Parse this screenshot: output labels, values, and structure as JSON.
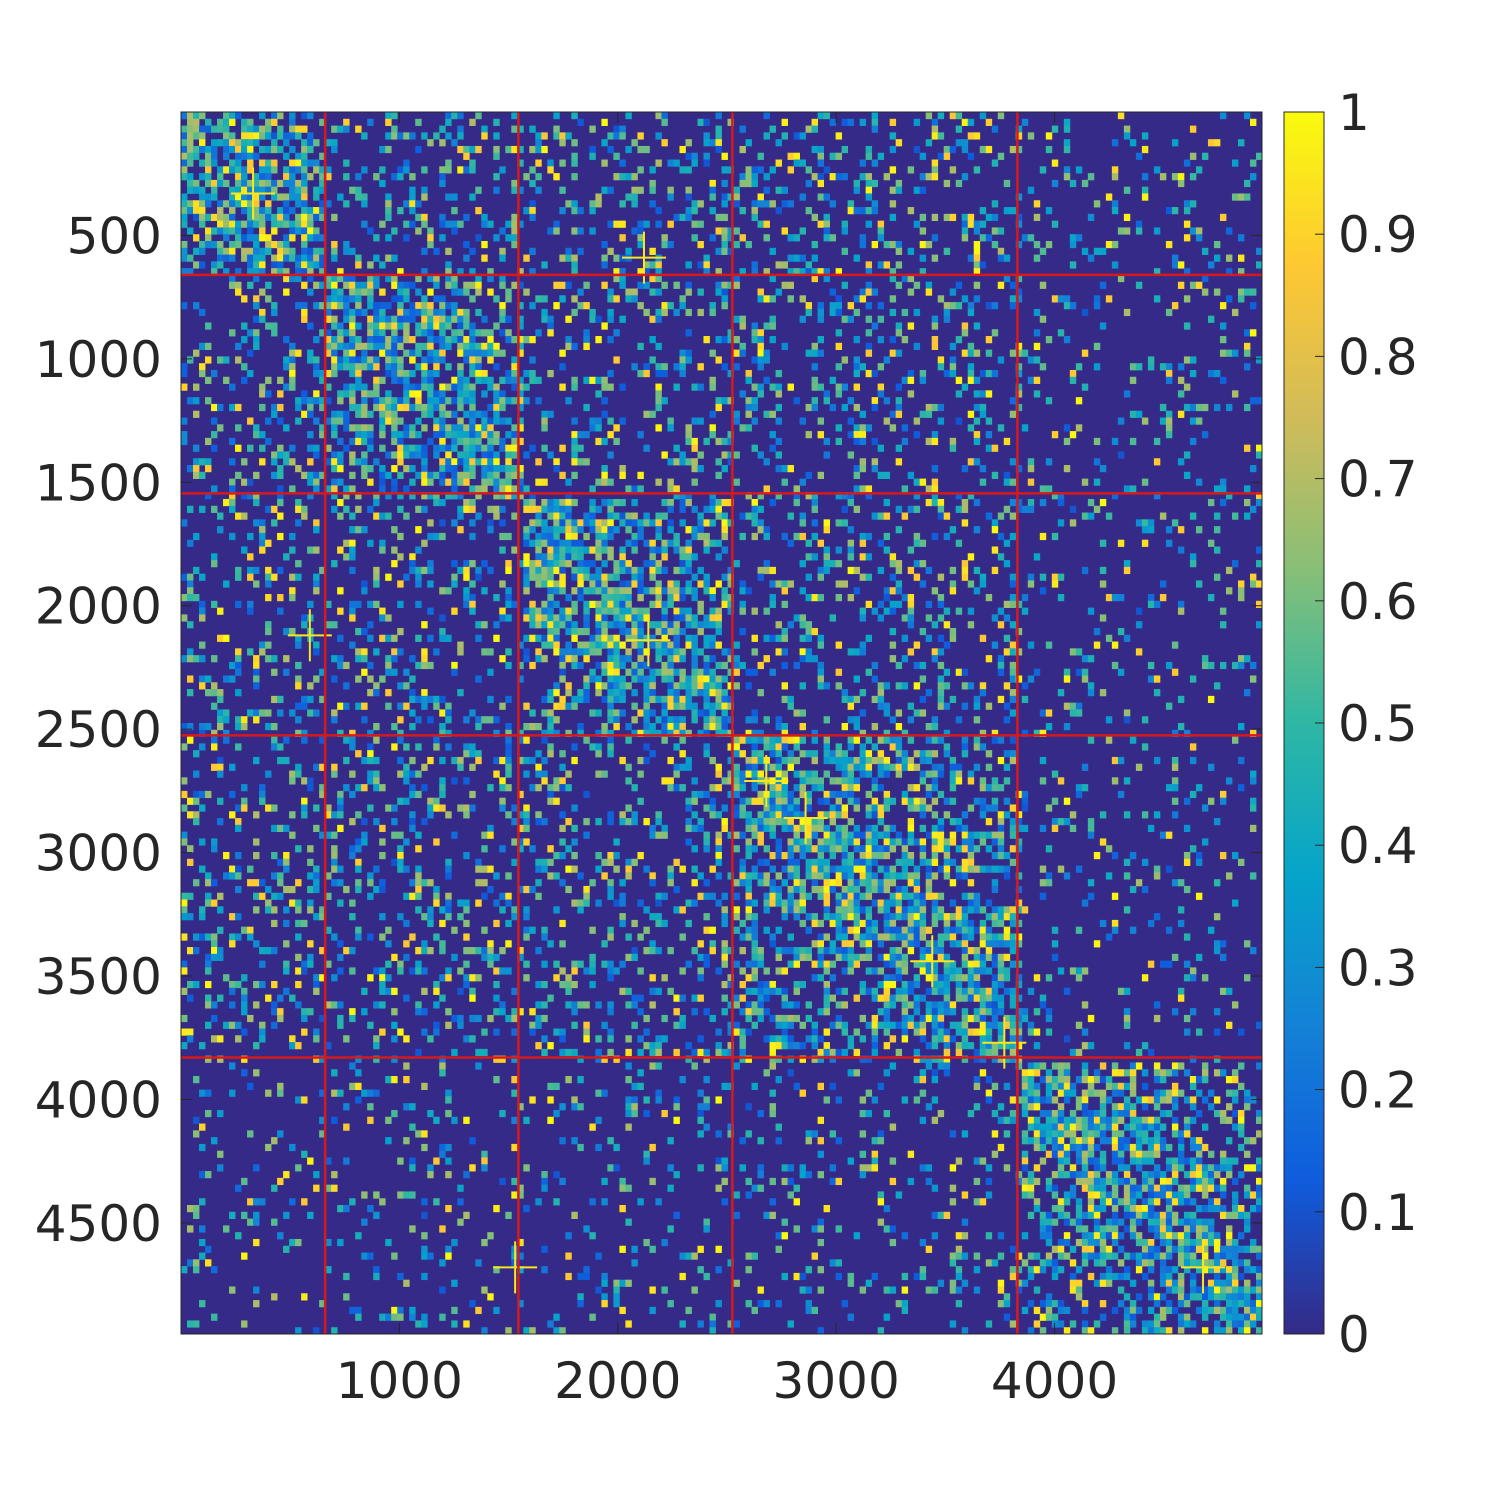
{
  "chart_data": {
    "type": "heatmap",
    "title": "",
    "xlabel": "",
    "ylabel": "",
    "matrix_size": 4950,
    "xlim": [
      0,
      4950
    ],
    "ylim": [
      0,
      4950
    ],
    "x_ticks": [
      1000,
      2000,
      3000,
      4000
    ],
    "x_tick_labels": [
      "1000",
      "2000",
      "3000",
      "4000"
    ],
    "y_ticks": [
      500,
      1000,
      1500,
      2000,
      2500,
      3000,
      3500,
      4000,
      4500
    ],
    "y_tick_labels": [
      "500",
      "1000",
      "1500",
      "2000",
      "2500",
      "3000",
      "3500",
      "4000",
      "4500"
    ],
    "y_axis_direction": "reversed",
    "colorbar": {
      "range": [
        0,
        1
      ],
      "ticks": [
        0,
        0.1,
        0.2,
        0.3,
        0.4,
        0.5,
        0.6,
        0.7,
        0.8,
        0.9,
        1
      ],
      "tick_labels": [
        "0",
        "0.1",
        "0.2",
        "0.3",
        "0.4",
        "0.5",
        "0.6",
        "0.7",
        "0.8",
        "0.9",
        "1"
      ],
      "colormap": "parula",
      "colormap_stops": [
        "#352a87",
        "#0f5cdd",
        "#1481d6",
        "#06a4ca",
        "#2eb7a4",
        "#87bf77",
        "#d1bb59",
        "#fec832",
        "#f9fb0e"
      ]
    },
    "block_boundaries": [
      660,
      1545,
      2525,
      3830
    ],
    "boundary_color": "#d7191c",
    "dense_diagonal_blocks": [
      {
        "start": 0,
        "end": 660,
        "mean": 0.2
      },
      {
        "start": 660,
        "end": 1545,
        "mean": 0.17
      },
      {
        "start": 1545,
        "end": 2525,
        "mean": 0.2
      },
      {
        "start": 2525,
        "end": 3830,
        "mean": 0.16
      },
      {
        "start": 3830,
        "end": 4950,
        "mean": 0.1
      }
    ],
    "bright_crosses": [
      {
        "x": 330,
        "y": 330
      },
      {
        "x": 2140,
        "y": 2140
      },
      {
        "x": 590,
        "y": 2120
      },
      {
        "x": 2120,
        "y": 590
      },
      {
        "x": 2680,
        "y": 2710
      },
      {
        "x": 2860,
        "y": 2860
      },
      {
        "x": 3440,
        "y": 3440
      },
      {
        "x": 3770,
        "y": 3770
      },
      {
        "x": 1530,
        "y": 4680
      },
      {
        "x": 4680,
        "y": 4680
      }
    ],
    "background_value": 0.0
  }
}
